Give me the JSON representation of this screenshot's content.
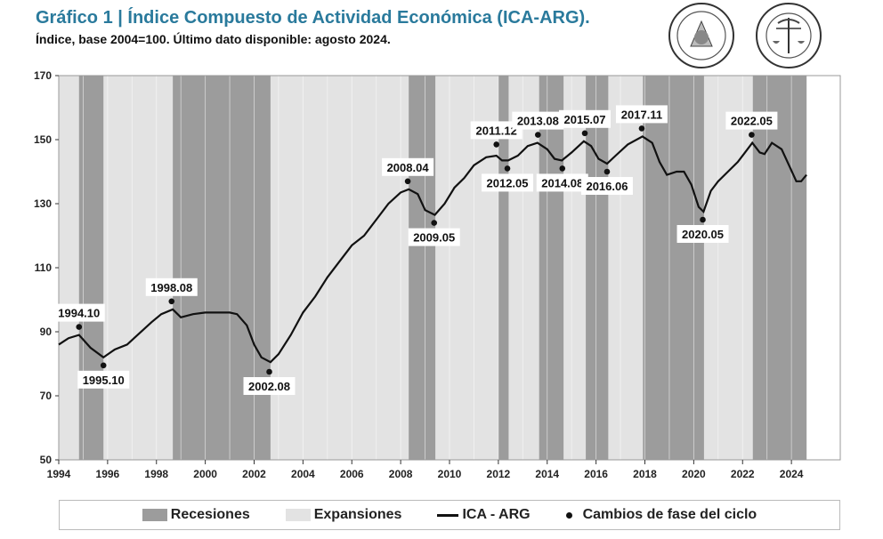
{
  "title": "Gráfico 1 | Índice Compuesto de Actividad Económica (ICA-ARG).",
  "subtitle": "Índice, base 2004=100. Último dato disponible: agosto 2024.",
  "logos": [
    "BOLSA DE COMERCIO DE SANTA FE",
    "BOLSA DE COMERCIO DE ROSARIO"
  ],
  "legend": {
    "recessions": "Recesiones",
    "expansions": "Expansiones",
    "line": "ICA - ARG",
    "dots": "Cambios de fase del ciclo"
  },
  "colors": {
    "title": "#2a7a9c",
    "recession": "#9c9c9c",
    "expansion": "#e3e3e3",
    "line": "#111111"
  },
  "chart_data": {
    "type": "line",
    "xlim": [
      1994,
      2026
    ],
    "ylim": [
      50,
      170
    ],
    "yticks": [
      50,
      70,
      90,
      110,
      130,
      150,
      170
    ],
    "xticks": [
      "1994",
      "1996",
      "1998",
      "2000",
      "2002",
      "2004",
      "2006",
      "2008",
      "2010",
      "2012",
      "2014",
      "2016",
      "2018",
      "2020",
      "2022",
      "2024"
    ],
    "recessions": [
      [
        1994.83,
        1995.83
      ],
      [
        1998.67,
        2002.67
      ],
      [
        2008.33,
        2009.42
      ],
      [
        2012.0,
        2012.42
      ],
      [
        2013.67,
        2014.67
      ],
      [
        2015.58,
        2016.5
      ],
      [
        2017.92,
        2020.42
      ],
      [
        2022.42,
        2024.62
      ]
    ],
    "expansion_range": [
      1994,
      2024.62
    ],
    "series": [
      {
        "name": "ICA - ARG",
        "points": [
          [
            1994.0,
            86
          ],
          [
            1994.4,
            88
          ],
          [
            1994.83,
            89
          ],
          [
            1995.3,
            85
          ],
          [
            1995.83,
            82
          ],
          [
            1996.3,
            84.5
          ],
          [
            1996.8,
            86
          ],
          [
            1997.3,
            89.5
          ],
          [
            1997.8,
            93
          ],
          [
            1998.2,
            95.5
          ],
          [
            1998.67,
            97
          ],
          [
            1999.0,
            94.5
          ],
          [
            1999.5,
            95.5
          ],
          [
            2000.0,
            96
          ],
          [
            2000.5,
            96
          ],
          [
            2001.0,
            96
          ],
          [
            2001.3,
            95.5
          ],
          [
            2001.7,
            92
          ],
          [
            2002.0,
            86
          ],
          [
            2002.3,
            82
          ],
          [
            2002.67,
            80.5
          ],
          [
            2003.0,
            83
          ],
          [
            2003.5,
            89
          ],
          [
            2004.0,
            96
          ],
          [
            2004.5,
            101
          ],
          [
            2005.0,
            107
          ],
          [
            2005.5,
            112
          ],
          [
            2006.0,
            117
          ],
          [
            2006.5,
            120
          ],
          [
            2007.0,
            125
          ],
          [
            2007.5,
            130
          ],
          [
            2008.0,
            133.5
          ],
          [
            2008.33,
            134.5
          ],
          [
            2008.7,
            133
          ],
          [
            2009.0,
            128
          ],
          [
            2009.4,
            126.5
          ],
          [
            2009.8,
            130
          ],
          [
            2010.2,
            135
          ],
          [
            2010.6,
            138
          ],
          [
            2011.0,
            142
          ],
          [
            2011.5,
            144.5
          ],
          [
            2011.92,
            145
          ],
          [
            2012.15,
            143.5
          ],
          [
            2012.4,
            143.5
          ],
          [
            2012.8,
            145
          ],
          [
            2013.2,
            148
          ],
          [
            2013.6,
            149
          ],
          [
            2014.0,
            147
          ],
          [
            2014.3,
            144
          ],
          [
            2014.6,
            143.5
          ],
          [
            2015.0,
            146
          ],
          [
            2015.5,
            149.5
          ],
          [
            2015.8,
            148
          ],
          [
            2016.1,
            144
          ],
          [
            2016.45,
            142.5
          ],
          [
            2016.8,
            145
          ],
          [
            2017.3,
            148.5
          ],
          [
            2017.9,
            151
          ],
          [
            2018.3,
            149
          ],
          [
            2018.6,
            143
          ],
          [
            2018.9,
            139
          ],
          [
            2019.3,
            140
          ],
          [
            2019.6,
            140
          ],
          [
            2019.9,
            136
          ],
          [
            2020.2,
            129
          ],
          [
            2020.4,
            127.5
          ],
          [
            2020.7,
            134
          ],
          [
            2021.0,
            137
          ],
          [
            2021.4,
            140
          ],
          [
            2021.8,
            143
          ],
          [
            2022.1,
            146
          ],
          [
            2022.4,
            149
          ],
          [
            2022.7,
            146
          ],
          [
            2022.9,
            145.5
          ],
          [
            2023.2,
            149
          ],
          [
            2023.6,
            147
          ],
          [
            2023.9,
            142
          ],
          [
            2024.2,
            137
          ],
          [
            2024.4,
            137
          ],
          [
            2024.62,
            139
          ]
        ]
      }
    ],
    "phase_changes": [
      {
        "label": "1994.10",
        "x": 1994.83,
        "y": 91.5,
        "kind": "peak"
      },
      {
        "label": "1995.10",
        "x": 1995.83,
        "y": 79.5,
        "kind": "trough"
      },
      {
        "label": "1998.08",
        "x": 1998.62,
        "y": 99.5,
        "kind": "peak"
      },
      {
        "label": "2002.08",
        "x": 2002.62,
        "y": 77.5,
        "kind": "trough"
      },
      {
        "label": "2008.04",
        "x": 2008.29,
        "y": 137,
        "kind": "peak"
      },
      {
        "label": "2009.05",
        "x": 2009.37,
        "y": 124,
        "kind": "trough"
      },
      {
        "label": "2011.12",
        "x": 2011.92,
        "y": 148.5,
        "kind": "peak"
      },
      {
        "label": "2012.05",
        "x": 2012.37,
        "y": 141,
        "kind": "trough"
      },
      {
        "label": "2013.08",
        "x": 2013.62,
        "y": 151.5,
        "kind": "peak"
      },
      {
        "label": "2014.08",
        "x": 2014.62,
        "y": 141,
        "kind": "trough"
      },
      {
        "label": "2015.07",
        "x": 2015.54,
        "y": 152,
        "kind": "peak"
      },
      {
        "label": "2016.06",
        "x": 2016.45,
        "y": 140,
        "kind": "trough"
      },
      {
        "label": "2017.11",
        "x": 2017.87,
        "y": 153.5,
        "kind": "peak"
      },
      {
        "label": "2020.05",
        "x": 2020.37,
        "y": 125,
        "kind": "trough"
      },
      {
        "label": "2022.05",
        "x": 2022.37,
        "y": 151.5,
        "kind": "peak"
      }
    ]
  }
}
